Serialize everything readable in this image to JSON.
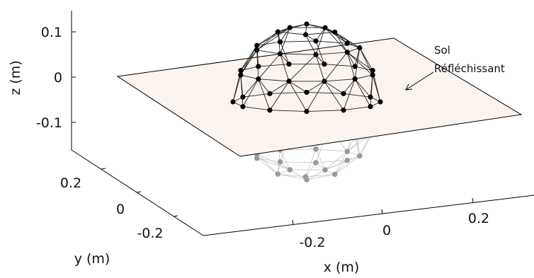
{
  "axes": {
    "z": {
      "label": "z (m)",
      "ticks": [
        "0.1",
        "0",
        "-0.1"
      ]
    },
    "y": {
      "label": "y (m)",
      "ticks": [
        "0.2",
        "0",
        "-0.2"
      ]
    },
    "x": {
      "label": "x (m)",
      "ticks": [
        "-0.2",
        "0",
        "0.2"
      ]
    }
  },
  "annotation": {
    "line1": "Sol",
    "line2": "Réfléchissant"
  },
  "colors": {
    "ground": "#faf3ee",
    "upper_sphere": "#000000",
    "reflected_sphere": "#9a9a9a",
    "axes": "#000000"
  }
}
